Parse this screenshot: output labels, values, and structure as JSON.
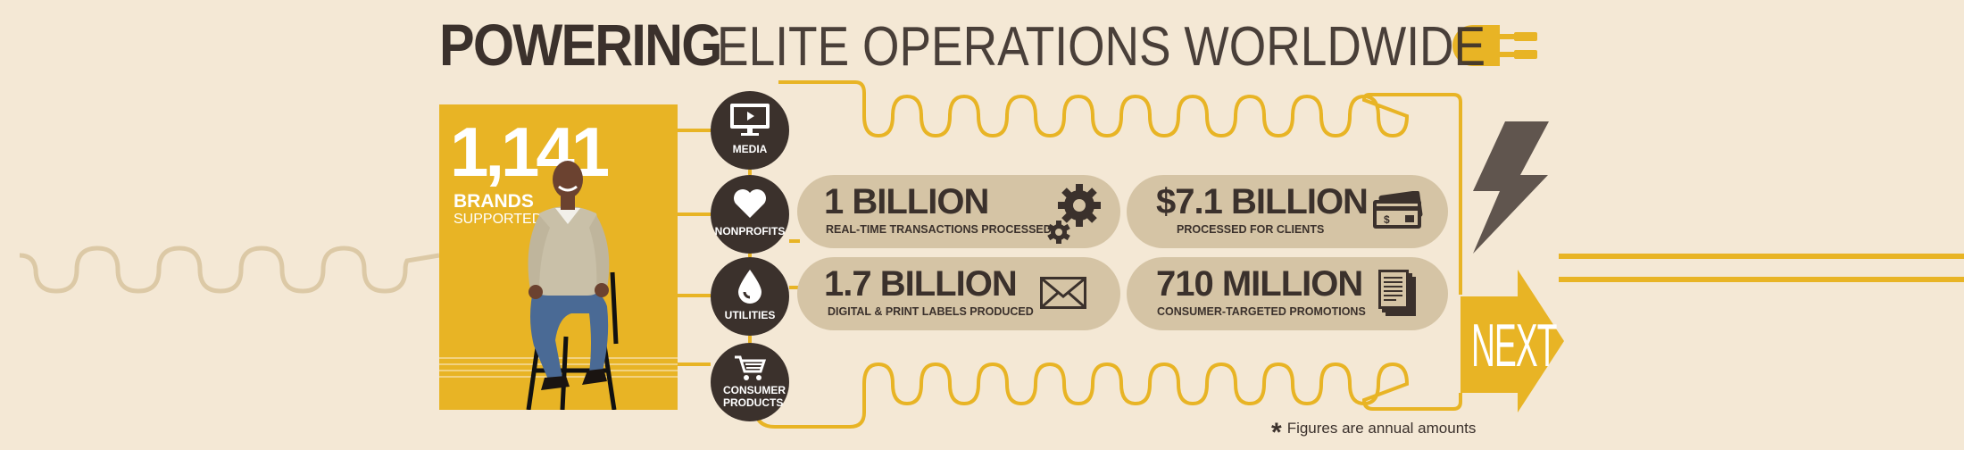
{
  "title": {
    "bold": "POWERING",
    "light": "ELITE OPERATIONS WORLDWIDE"
  },
  "brands": {
    "count": "1,141",
    "label_top": "BRANDS",
    "label_bottom": "SUPPORTED"
  },
  "categories": [
    {
      "label": "MEDIA",
      "icon": "monitor-icon"
    },
    {
      "label": "NONPROFITS",
      "icon": "heart-icon"
    },
    {
      "label": "UTILITIES",
      "icon": "water-drop-icon"
    },
    {
      "label": "CONSUMER PRODUCTS",
      "icon": "shopping-cart-icon"
    }
  ],
  "stats": [
    {
      "value": "1 BILLION",
      "caption": "REAL-TIME TRANSACTIONS PROCESSED",
      "icon": "gears-icon"
    },
    {
      "value": "$7.1 BILLION",
      "caption": "PROCESSED FOR CLIENTS",
      "icon": "credit-card-icon"
    },
    {
      "value": "1.7 BILLION",
      "caption": "DIGITAL & PRINT LABELS PRODUCED",
      "icon": "envelope-icon"
    },
    {
      "value": "710 MILLION",
      "caption": "CONSUMER-TARGETED PROMOTIONS",
      "icon": "documents-icon"
    }
  ],
  "footnote": {
    "star": "*",
    "text": "Figures are annual amounts"
  },
  "next": {
    "label": "NEXT"
  },
  "colors": {
    "background": "#f4e8d5",
    "gold": "#e8b425",
    "dark": "#3b312c",
    "pill": "#d5c4a5",
    "wire_left": "#dcc9a6"
  }
}
